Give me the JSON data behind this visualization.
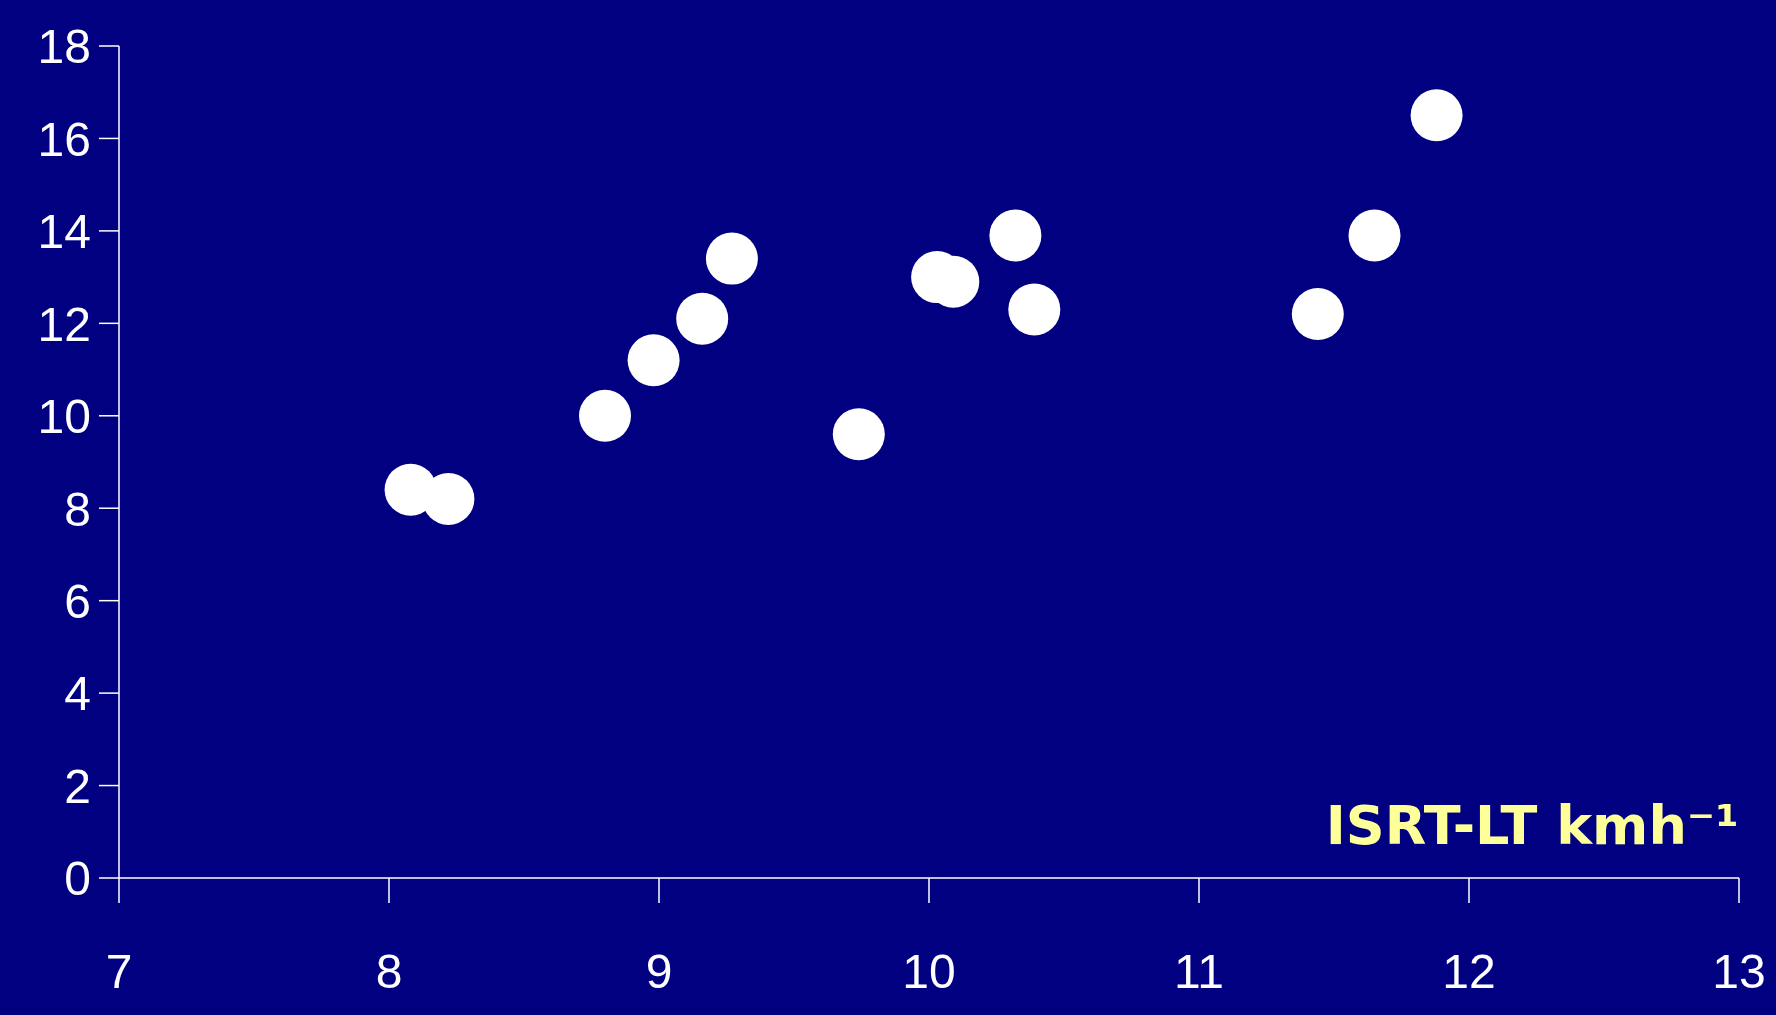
{
  "chart_data": {
    "type": "scatter",
    "xlabel": "ISRT-LT kmh⁻¹",
    "x": [
      8.08,
      8.22,
      8.8,
      8.98,
      9.16,
      9.27,
      9.74,
      10.03,
      10.09,
      10.32,
      10.39,
      11.44,
      11.65,
      11.88
    ],
    "values": [
      8.4,
      8.2,
      10.0,
      11.2,
      12.1,
      13.4,
      9.6,
      13.0,
      12.9,
      13.9,
      12.3,
      12.2,
      13.9,
      16.5
    ],
    "color": "#ffffff",
    "marker": "circle",
    "xlim": [
      7,
      13
    ],
    "xticks": [
      7,
      8,
      9,
      10,
      11,
      12,
      13
    ],
    "ylim": [
      0,
      18
    ],
    "yticks": [
      0,
      2,
      4,
      6,
      8,
      10,
      12,
      14,
      16,
      18
    ],
    "grid": false
  }
}
